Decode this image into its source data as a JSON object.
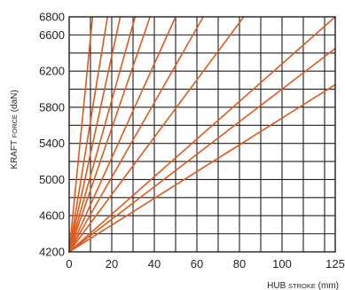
{
  "chart_data": {
    "type": "line",
    "title": "",
    "xlabel": "HUB STROKE (mm)",
    "xlabel_parts": {
      "main": "HUB ",
      "small": "STROKE",
      "unit": " (mm)"
    },
    "ylabel": "KRAFT FORCE (daN)",
    "ylabel_parts": {
      "main": "KRAFT ",
      "small": "FORCE",
      "unit": " (daN)"
    },
    "xlim": [
      0,
      125
    ],
    "ylim": [
      4200,
      6800
    ],
    "x_ticks": [
      {
        "value": 0,
        "label": "0",
        "highlight": false
      },
      {
        "value": 20,
        "label": "20",
        "highlight": false
      },
      {
        "value": 40,
        "label": "40",
        "highlight": false
      },
      {
        "value": 60,
        "label": "60",
        "highlight": false
      },
      {
        "value": 80,
        "label": "80",
        "highlight": false
      },
      {
        "value": 100,
        "label": "100",
        "highlight": false
      },
      {
        "value": 125,
        "label": "125",
        "highlight": true
      }
    ],
    "y_ticks": [
      {
        "value": 4200,
        "label": "4200",
        "highlight": false
      },
      {
        "value": 4600,
        "label": "4600",
        "highlight": false
      },
      {
        "value": 5000,
        "label": "5000",
        "highlight": false
      },
      {
        "value": 5400,
        "label": "5400",
        "highlight": false
      },
      {
        "value": 5800,
        "label": "5800",
        "highlight": false
      },
      {
        "value": 6200,
        "label": "6200",
        "highlight": false
      },
      {
        "value": 6600,
        "label": "6600",
        "highlight": false
      },
      {
        "value": 6800,
        "label": "6800",
        "highlight": true
      }
    ],
    "grid": true,
    "grid_x_step": 10,
    "grid_y_step": 200,
    "series": [
      {
        "x": [
          0,
          11
        ],
        "y": [
          4200,
          6800
        ]
      },
      {
        "x": [
          0,
          18
        ],
        "y": [
          4200,
          6800
        ]
      },
      {
        "x": [
          0,
          24
        ],
        "y": [
          4200,
          6800
        ]
      },
      {
        "x": [
          0,
          31
        ],
        "y": [
          4200,
          6800
        ]
      },
      {
        "x": [
          0,
          38
        ],
        "y": [
          4200,
          6800
        ]
      },
      {
        "x": [
          0,
          50
        ],
        "y": [
          4200,
          6800
        ]
      },
      {
        "x": [
          0,
          63
        ],
        "y": [
          4200,
          6800
        ]
      },
      {
        "x": [
          0,
          82
        ],
        "y": [
          4200,
          6800
        ]
      },
      {
        "x": [
          0,
          125
        ],
        "y": [
          4200,
          6800
        ]
      },
      {
        "x": [
          0,
          125
        ],
        "y": [
          4200,
          6450
        ]
      },
      {
        "x": [
          0,
          125
        ],
        "y": [
          4200,
          6050
        ]
      }
    ],
    "colors": {
      "series": "#e05a1c",
      "grid": "#231f20",
      "text": "#231f20",
      "highlight": "#e0141e"
    }
  }
}
